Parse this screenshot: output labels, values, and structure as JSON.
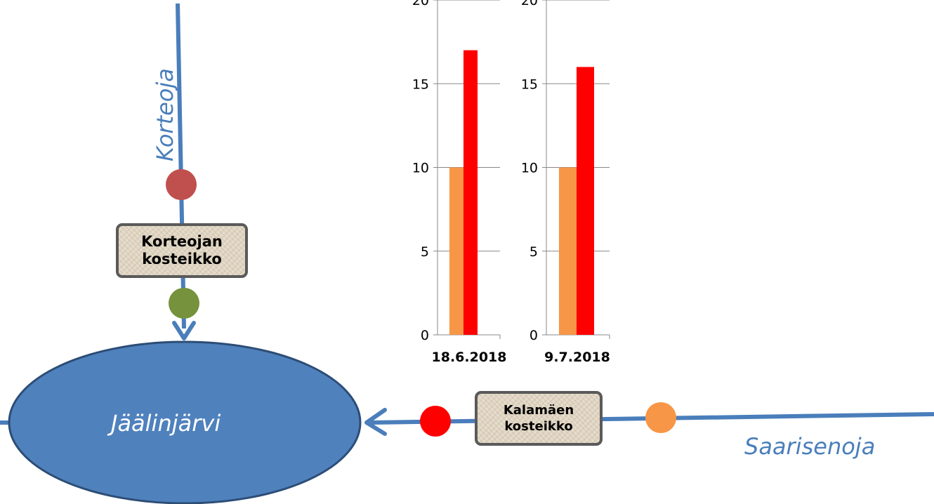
{
  "diagram": {
    "lake": {
      "label": "Jäälinjärvi",
      "fill": "#4f81bd",
      "stroke": "#2c4d75"
    },
    "streams": [
      {
        "name": "Korteoja",
        "color": "#4a7ebb"
      },
      {
        "name": "Saarisenoja",
        "color": "#4a7ebb"
      }
    ],
    "wetlands": [
      {
        "label": "Korteojan\nkosteikko"
      },
      {
        "label": "Kalamäen\nkosteikko"
      }
    ],
    "sampling_points": [
      {
        "name": "korteoja-upstream",
        "color": "#c0504d"
      },
      {
        "name": "korteoja-downstream",
        "color": "#76923c"
      },
      {
        "name": "kalamaki-downstream",
        "color": "#ff0000"
      },
      {
        "name": "saarisenoja-upstream",
        "color": "#f79646"
      }
    ]
  },
  "chart_data": [
    {
      "type": "bar",
      "categories": [
        "18.6.2018"
      ],
      "series": [
        {
          "values": [
            10
          ],
          "color": "#f79646"
        },
        {
          "values": [
            17
          ],
          "color": "#ff0000"
        }
      ],
      "ylim": [
        0,
        20
      ],
      "yticks": [
        0,
        5,
        10,
        15,
        20
      ]
    },
    {
      "type": "bar",
      "categories": [
        "9.7.2018"
      ],
      "series": [
        {
          "values": [
            10
          ],
          "color": "#f79646"
        },
        {
          "values": [
            16
          ],
          "color": "#ff0000"
        }
      ],
      "ylim": [
        0,
        20
      ],
      "yticks": [
        0,
        5,
        10,
        15,
        20
      ]
    }
  ]
}
